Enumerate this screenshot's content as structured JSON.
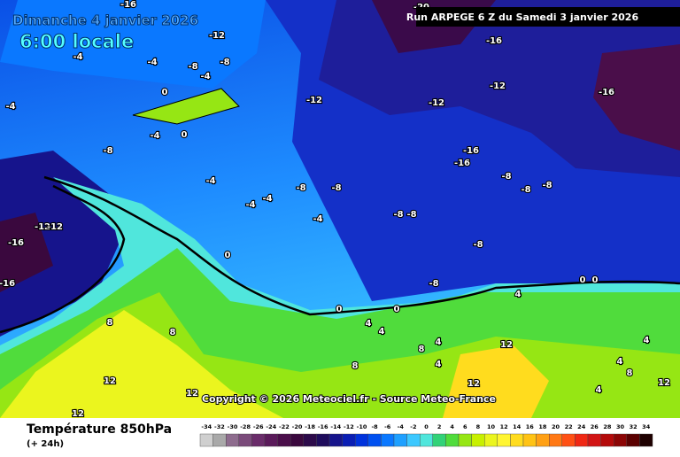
{
  "header": {
    "date": "Dimanche 4 janvier 2026",
    "time": "6:00 locale",
    "run": "Run ARPEGE 6 Z du Samedi 3 janvier 2026"
  },
  "map": {
    "labels": [
      "-16",
      "-20",
      "-12",
      "-12",
      "-16",
      "-12",
      "-16",
      "-12",
      "-12",
      "-4",
      "-4",
      "-4",
      "-8",
      "-8",
      "-4",
      "0",
      "0",
      "-4",
      "-8",
      "-12",
      "-16",
      "-16",
      "-16",
      "-4",
      "-8",
      "-8",
      "-8",
      "-8",
      "-4",
      "-8",
      "-8",
      "-8",
      "-4",
      "0",
      "0",
      "0",
      "8",
      "8",
      "12",
      "12",
      "12",
      "4",
      "4",
      "8",
      "12",
      "8",
      "4",
      "12",
      "4",
      "4",
      "12",
      "8",
      "4",
      "-4",
      "-8",
      "-16",
      "-8",
      "0",
      "0",
      "4",
      "4"
    ],
    "copyright": "Copyright © 2026 Meteociel.fr - Source Meteo-France"
  },
  "footer": {
    "title": "Température 850hPa",
    "subtitle": "(+ 24h)"
  },
  "legend": {
    "ticks": [
      -34,
      -32,
      -30,
      -28,
      -26,
      -24,
      -22,
      -20,
      -18,
      -16,
      -14,
      -12,
      -10,
      -8,
      -6,
      -4,
      -2,
      0,
      2,
      4,
      6,
      8,
      10,
      12,
      14,
      16,
      18,
      20,
      22,
      24,
      26,
      28,
      30,
      32,
      34
    ],
    "colors": [
      "#cfcfcf",
      "#a9a9a9",
      "#8e6c8e",
      "#7a4a7a",
      "#6a2c6a",
      "#5a1a5a",
      "#4a0e4a",
      "#3a083e",
      "#2c0a4a",
      "#1e0c5c",
      "#16148c",
      "#0a1eb4",
      "#0032dc",
      "#0050f0",
      "#0a78ff",
      "#1ea0ff",
      "#3cc8ff",
      "#50e6dc",
      "#32d278",
      "#50dc3c",
      "#96e614",
      "#c8f000",
      "#ebf51e",
      "#fff532",
      "#ffdc1e",
      "#ffc314",
      "#ffa014",
      "#ff7814",
      "#ff5014",
      "#f02814",
      "#d21414",
      "#b40a0a",
      "#8c0505",
      "#5a0000",
      "#1e0000"
    ]
  }
}
